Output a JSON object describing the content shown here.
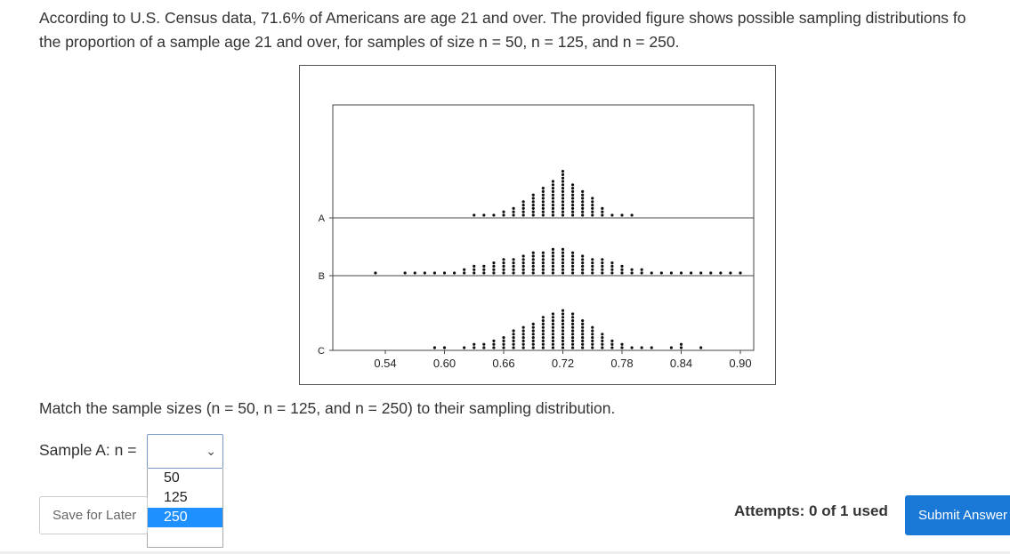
{
  "question": {
    "line1": "According to U.S. Census data, 71.6% of Americans are age 21 and over. The provided figure shows possible sampling distributions fo",
    "line2": "the proportion of a sample age 21 and over, for samples of size n = 50, n = 125, and n = 250.",
    "match_prompt": "Match the sample sizes (n = 50, n = 125, and n = 250) to their sampling distribution."
  },
  "figure": {
    "row_labels": [
      "A",
      "B",
      "C"
    ],
    "x_ticks": [
      "0.54",
      "0.60",
      "0.66",
      "0.72",
      "0.78",
      "0.84",
      "0.90"
    ],
    "x_range": [
      0.5,
      0.93
    ],
    "dot_counts": {
      "A": [
        [
          0.6,
          0
        ],
        [
          0.62,
          0
        ],
        [
          0.63,
          1
        ],
        [
          0.64,
          1
        ],
        [
          0.65,
          1
        ],
        [
          0.66,
          2
        ],
        [
          0.67,
          3
        ],
        [
          0.68,
          5
        ],
        [
          0.69,
          7
        ],
        [
          0.7,
          9
        ],
        [
          0.71,
          11
        ],
        [
          0.72,
          14
        ],
        [
          0.73,
          10
        ],
        [
          0.74,
          8
        ],
        [
          0.75,
          6
        ],
        [
          0.76,
          3
        ],
        [
          0.77,
          1
        ],
        [
          0.78,
          1
        ],
        [
          0.79,
          1
        ]
      ],
      "B": [
        [
          0.53,
          1
        ],
        [
          0.56,
          1
        ],
        [
          0.57,
          1
        ],
        [
          0.58,
          1
        ],
        [
          0.59,
          1
        ],
        [
          0.6,
          1
        ],
        [
          0.61,
          1
        ],
        [
          0.62,
          2
        ],
        [
          0.63,
          3
        ],
        [
          0.64,
          3
        ],
        [
          0.65,
          4
        ],
        [
          0.66,
          5
        ],
        [
          0.67,
          5
        ],
        [
          0.68,
          6
        ],
        [
          0.69,
          7
        ],
        [
          0.7,
          7
        ],
        [
          0.71,
          8
        ],
        [
          0.72,
          8
        ],
        [
          0.73,
          7
        ],
        [
          0.74,
          6
        ],
        [
          0.75,
          5
        ],
        [
          0.76,
          5
        ],
        [
          0.77,
          4
        ],
        [
          0.78,
          3
        ],
        [
          0.79,
          2
        ],
        [
          0.8,
          2
        ],
        [
          0.81,
          1
        ],
        [
          0.82,
          1
        ],
        [
          0.83,
          1
        ],
        [
          0.84,
          1
        ],
        [
          0.85,
          1
        ],
        [
          0.86,
          1
        ],
        [
          0.87,
          1
        ],
        [
          0.88,
          1
        ],
        [
          0.89,
          1
        ],
        [
          0.9,
          1
        ]
      ],
      "C": [
        [
          0.59,
          1
        ],
        [
          0.6,
          1
        ],
        [
          0.62,
          1
        ],
        [
          0.63,
          2
        ],
        [
          0.64,
          2
        ],
        [
          0.65,
          3
        ],
        [
          0.66,
          4
        ],
        [
          0.67,
          6
        ],
        [
          0.68,
          7
        ],
        [
          0.69,
          8
        ],
        [
          0.7,
          10
        ],
        [
          0.71,
          11
        ],
        [
          0.72,
          12
        ],
        [
          0.73,
          11
        ],
        [
          0.74,
          9
        ],
        [
          0.75,
          7
        ],
        [
          0.76,
          5
        ],
        [
          0.77,
          3
        ],
        [
          0.78,
          2
        ],
        [
          0.79,
          1
        ],
        [
          0.8,
          1
        ],
        [
          0.81,
          1
        ],
        [
          0.83,
          1
        ],
        [
          0.84,
          2
        ],
        [
          0.86,
          1
        ]
      ]
    }
  },
  "form": {
    "sample_label": "Sample A: n =",
    "select_value": "",
    "options": [
      "50",
      "125",
      "250"
    ],
    "highlighted_option": "250"
  },
  "footer": {
    "save_label": "Save for Later",
    "attempts": "Attempts: 0 of 1 used",
    "submit_label": "Submit Answer"
  },
  "colors": {
    "submit_bg": "#1a78d6",
    "highlight": "#1e90ff"
  }
}
